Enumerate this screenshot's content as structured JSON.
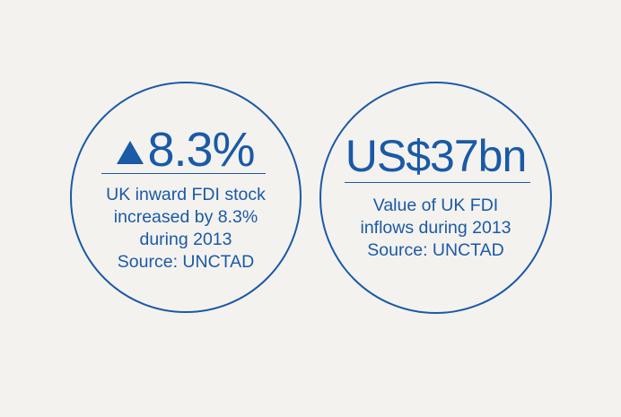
{
  "accent_color": "#1a5aa6",
  "background_color": "#f4f2ef",
  "stats": [
    {
      "icon": "up-triangle-icon",
      "value": "8.3%",
      "lines": [
        "UK inward FDI stock",
        "increased by 8.3%",
        "during 2013",
        "Source: UNCTAD"
      ]
    },
    {
      "value": "US$37bn",
      "lines": [
        "Value of UK FDI",
        "inflows during 2013",
        "Source: UNCTAD"
      ]
    }
  ]
}
